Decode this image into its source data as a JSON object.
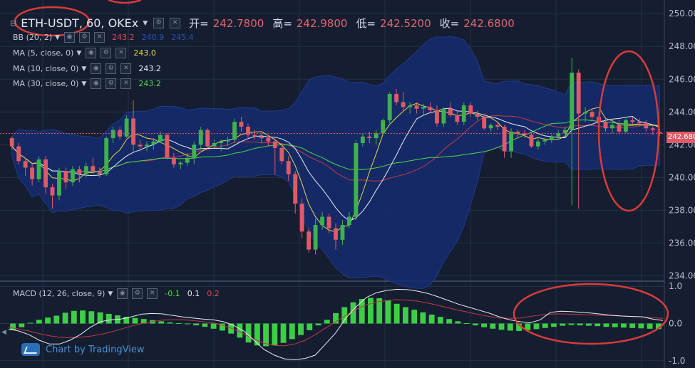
{
  "header": {
    "symbol": "ETH-USDT, 60, OKEx",
    "open_label": "开=",
    "open_value": "242.7800",
    "high_label": "高=",
    "high_value": "242.9800",
    "low_label": "低=",
    "low_value": "242.5200",
    "close_label": "收=",
    "close_value": "242.6800"
  },
  "indicators": [
    {
      "label": "BB (20, 2)",
      "values": [
        "243.2",
        "240.9",
        "245.4"
      ],
      "colors": [
        "#e04a56",
        "#2e4fb8",
        "#2e4fb8"
      ]
    },
    {
      "label": "MA (5, close, 0)",
      "values": [
        "243.0"
      ],
      "colors": [
        "#e8d84a"
      ]
    },
    {
      "label": "MA (10, close, 0)",
      "values": [
        "243.2"
      ],
      "colors": [
        "#e8ecf2"
      ]
    },
    {
      "label": "MA (30, close, 0)",
      "values": [
        "243.2"
      ],
      "colors": [
        "#4cd84a"
      ]
    }
  ],
  "macd": {
    "label": "MACD (12, 26, close, 9)",
    "values": [
      "-0.1",
      "0.1",
      "0.2"
    ],
    "colors": [
      "#4cd84a",
      "#e8ecf2",
      "#e04a56"
    ]
  },
  "brand": "Chart by TradingView",
  "price_tag": "242.680",
  "colors": {
    "bg": "#141e30",
    "grid": "#263048",
    "up": "#3fb14d",
    "down": "#e05a66",
    "bb_fill": "#142b6e",
    "annot": "#d93b3b"
  },
  "chart_data": [
    {
      "type": "candlestick",
      "title": "",
      "y_ticks": [
        234.0,
        236.0,
        238.0,
        240.0,
        242.0,
        244.0,
        246.0,
        248.0,
        250.0
      ],
      "y_tick_labels": [
        "234.00",
        "236.00",
        "238.00",
        "240.00",
        "242.00",
        "244.00",
        "246.00",
        "248.00",
        "250.00"
      ],
      "ylim": [
        233.8,
        250.4
      ],
      "grid": true,
      "last_price": 242.68,
      "candles": [
        [
          242.4,
          242.5,
          241.7,
          241.9
        ],
        [
          241.9,
          242.1,
          240.8,
          241.0
        ],
        [
          241.0,
          241.2,
          240.1,
          240.6
        ],
        [
          240.6,
          240.9,
          239.5,
          239.9
        ],
        [
          239.9,
          241.3,
          239.7,
          241.1
        ],
        [
          241.1,
          241.3,
          239.0,
          239.4
        ],
        [
          239.4,
          239.6,
          238.1,
          238.9
        ],
        [
          238.9,
          240.6,
          238.6,
          240.4
        ],
        [
          240.4,
          240.6,
          239.3,
          239.7
        ],
        [
          239.7,
          240.7,
          239.5,
          240.5
        ],
        [
          240.5,
          240.7,
          239.7,
          240.2
        ],
        [
          240.2,
          240.9,
          240.0,
          240.7
        ],
        [
          240.7,
          241.2,
          240.2,
          240.4
        ],
        [
          240.4,
          240.6,
          240.0,
          240.2
        ],
        [
          240.2,
          242.5,
          240.1,
          242.4
        ],
        [
          242.4,
          243.1,
          242.1,
          242.9
        ],
        [
          242.9,
          243.1,
          242.3,
          242.5
        ],
        [
          242.5,
          243.8,
          242.4,
          243.6
        ],
        [
          243.6,
          244.7,
          241.6,
          242.0
        ],
        [
          242.0,
          242.3,
          241.6,
          241.9
        ],
        [
          241.9,
          242.2,
          241.6,
          242.0
        ],
        [
          242.0,
          242.4,
          241.7,
          242.2
        ],
        [
          242.2,
          242.8,
          242.1,
          242.6
        ],
        [
          242.6,
          242.7,
          241.1,
          241.2
        ],
        [
          241.2,
          241.5,
          240.6,
          240.8
        ],
        [
          240.8,
          241.0,
          240.5,
          240.9
        ],
        [
          240.9,
          241.5,
          240.7,
          241.2
        ],
        [
          241.2,
          242.2,
          240.8,
          242.0
        ],
        [
          242.0,
          243.1,
          241.7,
          242.9
        ],
        [
          242.9,
          243.0,
          241.8,
          241.9
        ],
        [
          241.9,
          242.3,
          241.8,
          242.1
        ],
        [
          242.1,
          242.3,
          241.6,
          242.2
        ],
        [
          242.2,
          242.5,
          241.9,
          242.3
        ],
        [
          242.3,
          243.6,
          242.1,
          243.4
        ],
        [
          243.4,
          243.7,
          242.8,
          243.1
        ],
        [
          243.1,
          243.3,
          242.4,
          242.6
        ],
        [
          242.6,
          242.9,
          242.3,
          242.5
        ],
        [
          242.5,
          242.7,
          242.1,
          242.4
        ],
        [
          242.4,
          242.6,
          241.9,
          242.2
        ],
        [
          242.2,
          242.5,
          240.2,
          241.8
        ],
        [
          241.8,
          242.1,
          240.8,
          241.0
        ],
        [
          241.0,
          241.3,
          239.8,
          240.2
        ],
        [
          240.2,
          240.4,
          237.8,
          238.4
        ],
        [
          238.4,
          238.7,
          236.3,
          236.7
        ],
        [
          236.7,
          236.9,
          235.4,
          235.6
        ],
        [
          235.6,
          237.5,
          235.3,
          237.1
        ],
        [
          237.1,
          237.9,
          236.8,
          237.6
        ],
        [
          237.6,
          237.8,
          236.6,
          236.9
        ],
        [
          236.9,
          237.2,
          235.6,
          236.2
        ],
        [
          236.2,
          237.4,
          235.9,
          237.1
        ],
        [
          237.1,
          237.9,
          236.9,
          237.6
        ],
        [
          237.6,
          242.3,
          237.4,
          242.1
        ],
        [
          242.1,
          242.7,
          241.9,
          242.5
        ],
        [
          242.5,
          242.8,
          242.1,
          242.4
        ],
        [
          242.4,
          242.9,
          242.0,
          242.7
        ],
        [
          242.7,
          243.6,
          242.6,
          243.5
        ],
        [
          243.5,
          245.2,
          243.3,
          245.1
        ],
        [
          245.1,
          245.4,
          244.4,
          244.6
        ],
        [
          244.6,
          245.2,
          244.0,
          244.3
        ],
        [
          244.3,
          244.6,
          243.9,
          244.4
        ],
        [
          244.4,
          244.6,
          243.9,
          244.2
        ],
        [
          244.2,
          244.5,
          243.8,
          244.3
        ],
        [
          244.3,
          244.6,
          243.9,
          244.1
        ],
        [
          244.1,
          244.4,
          243.1,
          243.3
        ],
        [
          243.3,
          244.3,
          243.1,
          244.2
        ],
        [
          244.2,
          244.6,
          243.7,
          243.8
        ],
        [
          243.8,
          244.1,
          243.2,
          243.4
        ],
        [
          243.4,
          244.6,
          243.2,
          244.4
        ],
        [
          244.4,
          244.6,
          243.7,
          243.9
        ],
        [
          243.9,
          244.1,
          243.5,
          243.7
        ],
        [
          243.7,
          243.9,
          242.9,
          243.0
        ],
        [
          243.0,
          243.3,
          242.8,
          243.2
        ],
        [
          243.2,
          243.4,
          242.9,
          243.1
        ],
        [
          243.1,
          243.2,
          241.2,
          241.6
        ],
        [
          241.6,
          243.0,
          241.2,
          242.8
        ],
        [
          242.8,
          242.9,
          242.4,
          242.7
        ],
        [
          242.7,
          242.9,
          242.4,
          242.6
        ],
        [
          242.6,
          242.8,
          241.8,
          241.9
        ],
        [
          241.9,
          242.4,
          241.7,
          242.2
        ],
        [
          242.2,
          242.4,
          242.0,
          242.3
        ],
        [
          242.3,
          242.6,
          242.1,
          242.5
        ],
        [
          242.5,
          242.9,
          242.3,
          242.7
        ],
        [
          242.7,
          243.1,
          242.5,
          242.9
        ],
        [
          242.9,
          247.3,
          238.3,
          246.4
        ],
        [
          246.4,
          246.6,
          238.1,
          243.9
        ],
        [
          243.9,
          244.3,
          243.4,
          244.0
        ],
        [
          244.0,
          244.2,
          243.5,
          243.7
        ],
        [
          243.7,
          244.0,
          243.2,
          243.4
        ],
        [
          243.4,
          243.6,
          242.8,
          243.0
        ],
        [
          243.0,
          243.4,
          242.7,
          243.2
        ],
        [
          243.2,
          243.5,
          242.6,
          242.8
        ],
        [
          242.8,
          243.6,
          242.7,
          243.5
        ],
        [
          243.5,
          243.7,
          243.2,
          243.4
        ],
        [
          243.4,
          243.6,
          243.1,
          243.3
        ],
        [
          243.3,
          243.5,
          242.8,
          243.0
        ],
        [
          243.0,
          243.2,
          242.6,
          242.9
        ],
        [
          242.78,
          242.98,
          242.52,
          242.68
        ]
      ]
    },
    {
      "type": "bar",
      "title": "",
      "y_ticks": [
        -1.0,
        0.0,
        1.0
      ],
      "y_tick_labels": [
        "-1.0",
        "0.0",
        "1.0"
      ],
      "ylim": [
        -1.1,
        1.1
      ],
      "series": [
        {
          "values": [
            -0.18,
            -0.1,
            0.02,
            0.1,
            0.16,
            0.21,
            0.29,
            0.34,
            0.35,
            0.33,
            0.3,
            0.26,
            0.22,
            0.18,
            0.15,
            0.12,
            0.09,
            0.06,
            0.03,
            0.01,
            -0.02,
            -0.05,
            -0.09,
            -0.14,
            -0.19,
            -0.27,
            -0.38,
            -0.51,
            -0.59,
            -0.61,
            -0.58,
            -0.52,
            -0.42,
            -0.31,
            -0.18,
            -0.05,
            0.1,
            0.28,
            0.44,
            0.57,
            0.66,
            0.69,
            0.68,
            0.62,
            0.53,
            0.44,
            0.37,
            0.3,
            0.24,
            0.18,
            0.12,
            0.06,
            0.01,
            -0.05,
            -0.1,
            -0.14,
            -0.17,
            -0.19,
            -0.2,
            -0.18,
            -0.15,
            -0.12,
            -0.09,
            -0.06,
            -0.04,
            -0.05,
            -0.06,
            -0.07,
            -0.09,
            -0.1,
            -0.11,
            -0.12,
            -0.13,
            -0.14,
            -0.15
          ]
        },
        {
          "values": [
            -0.15,
            -0.2,
            -0.3,
            -0.45,
            -0.55,
            -0.55,
            -0.45,
            -0.3,
            -0.1,
            0.05,
            0.1,
            0.12,
            0.18,
            0.25,
            0.27,
            0.26,
            0.22,
            0.18,
            0.15,
            0.12,
            0.1,
            0.05,
            -0.05,
            -0.2,
            -0.45,
            -0.7,
            -0.85,
            -0.95,
            -0.97,
            -0.94,
            -0.85,
            -0.55,
            -0.25,
            0.15,
            0.45,
            0.7,
            0.83,
            0.89,
            0.92,
            0.91,
            0.87,
            0.81,
            0.72,
            0.62,
            0.52,
            0.44,
            0.36,
            0.28,
            0.18,
            0.1,
            0.05,
            0.02,
            0.1,
            0.3,
            0.33,
            0.32,
            0.3,
            0.28,
            0.25,
            0.22,
            0.2,
            0.19,
            0.18,
            0.12,
            0.08
          ]
        },
        {
          "values": [
            -0.1,
            -0.15,
            -0.2,
            -0.27,
            -0.33,
            -0.37,
            -0.38,
            -0.37,
            -0.34,
            -0.29,
            -0.23,
            -0.15,
            -0.07,
            0.0,
            0.05,
            0.09,
            0.1,
            0.1,
            0.08,
            0.05,
            0.02,
            -0.05,
            -0.15,
            -0.28,
            -0.42,
            -0.53,
            -0.59,
            -0.6,
            -0.55,
            -0.45,
            -0.3,
            -0.12,
            0.05,
            0.22,
            0.38,
            0.5,
            0.58,
            0.62,
            0.64,
            0.63,
            0.6,
            0.55,
            0.49,
            0.42,
            0.36,
            0.3,
            0.24,
            0.19,
            0.15,
            0.14,
            0.15,
            0.19,
            0.23,
            0.25,
            0.26,
            0.25,
            0.24,
            0.23,
            0.22,
            0.21,
            0.2,
            0.19,
            0.18,
            0.16,
            0.14
          ]
        }
      ]
    }
  ]
}
